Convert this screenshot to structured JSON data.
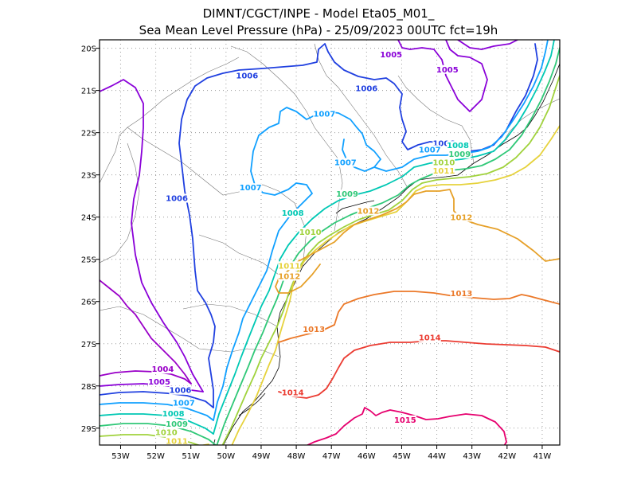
{
  "title": {
    "line1": "DIMNT/CGCT/INPE -  Model Eta05_M01_",
    "line2": "Sea Mean Level Pressure (hPa) - 25/09/2023 00UTC fct=19h"
  },
  "chart_data": {
    "type": "contour-map",
    "variable": "Sea Mean Level Pressure",
    "units": "hPa",
    "lon_range": [
      -53.6,
      -40.5
    ],
    "lat_range": [
      -29.4,
      -19.8
    ],
    "lon_ticks": [
      "53W",
      "52W",
      "51W",
      "50W",
      "49W",
      "48W",
      "47W",
      "46W",
      "45W",
      "44W",
      "43W",
      "42W",
      "41W"
    ],
    "lat_ticks": [
      "20S",
      "21S",
      "22S",
      "23S",
      "24S",
      "25S",
      "26S",
      "27S",
      "28S",
      "29S"
    ],
    "contour_colors": {
      "1004": "#9a00c8",
      "1005": "#8a00d8",
      "1006": "#2040e0",
      "1007": "#10a0ff",
      "1008": "#00c8b4",
      "1009": "#30c878",
      "1010": "#a0d23c",
      "1011": "#e6d23c",
      "1012": "#e6a028",
      "1013": "#eb7828",
      "1014": "#eb3c32",
      "1015": "#e6006e"
    },
    "contour_labels": [
      {
        "text": "1005",
        "lon": -45.3,
        "lat": -20.2
      },
      {
        "text": "1005",
        "lon": -43.7,
        "lat": -20.55
      },
      {
        "text": "1006",
        "lon": -49.4,
        "lat": -20.7
      },
      {
        "text": "1006",
        "lon": -46.0,
        "lat": -21.0
      },
      {
        "text": "1007",
        "lon": -47.2,
        "lat": -21.6
      },
      {
        "text": "1006",
        "lon": -43.8,
        "lat": -22.3
      },
      {
        "text": "1008",
        "lon": -43.4,
        "lat": -22.35
      },
      {
        "text": "1007",
        "lon": -44.2,
        "lat": -22.45
      },
      {
        "text": "1009",
        "lon": -43.35,
        "lat": -22.55
      },
      {
        "text": "1007",
        "lon": -46.6,
        "lat": -22.75
      },
      {
        "text": "1010",
        "lon": -43.8,
        "lat": -22.75
      },
      {
        "text": "1011",
        "lon": -43.8,
        "lat": -22.95
      },
      {
        "text": "1007",
        "lon": -49.3,
        "lat": -23.35
      },
      {
        "text": "1009",
        "lon": -46.55,
        "lat": -23.5
      },
      {
        "text": "1006",
        "lon": -51.4,
        "lat": -23.6
      },
      {
        "text": "1008",
        "lon": -48.1,
        "lat": -23.95
      },
      {
        "text": "1012",
        "lon": -45.95,
        "lat": -23.9
      },
      {
        "text": "1012",
        "lon": -43.3,
        "lat": -24.05
      },
      {
        "text": "1010",
        "lon": -47.6,
        "lat": -24.4
      },
      {
        "text": "1011",
        "lon": -48.2,
        "lat": -25.2
      },
      {
        "text": "1012",
        "lon": -48.2,
        "lat": -25.45
      },
      {
        "text": "1013",
        "lon": -43.3,
        "lat": -25.85
      },
      {
        "text": "1013",
        "lon": -47.5,
        "lat": -26.7
      },
      {
        "text": "1014",
        "lon": -44.2,
        "lat": -26.9
      },
      {
        "text": "1004",
        "lon": -51.8,
        "lat": -27.65
      },
      {
        "text": "1005",
        "lon": -51.9,
        "lat": -27.95
      },
      {
        "text": "1006",
        "lon": -51.3,
        "lat": -28.15
      },
      {
        "text": "1014",
        "lon": -48.1,
        "lat": -28.2
      },
      {
        "text": "1007",
        "lon": -51.2,
        "lat": -28.45
      },
      {
        "text": "1008",
        "lon": -51.5,
        "lat": -28.7
      },
      {
        "text": "1015",
        "lon": -44.9,
        "lat": -28.85
      },
      {
        "text": "1009",
        "lon": -51.4,
        "lat": -28.95
      },
      {
        "text": "1010",
        "lon": -51.7,
        "lat": -29.15
      },
      {
        "text": "1011",
        "lon": -51.4,
        "lat": -29.35
      }
    ]
  }
}
